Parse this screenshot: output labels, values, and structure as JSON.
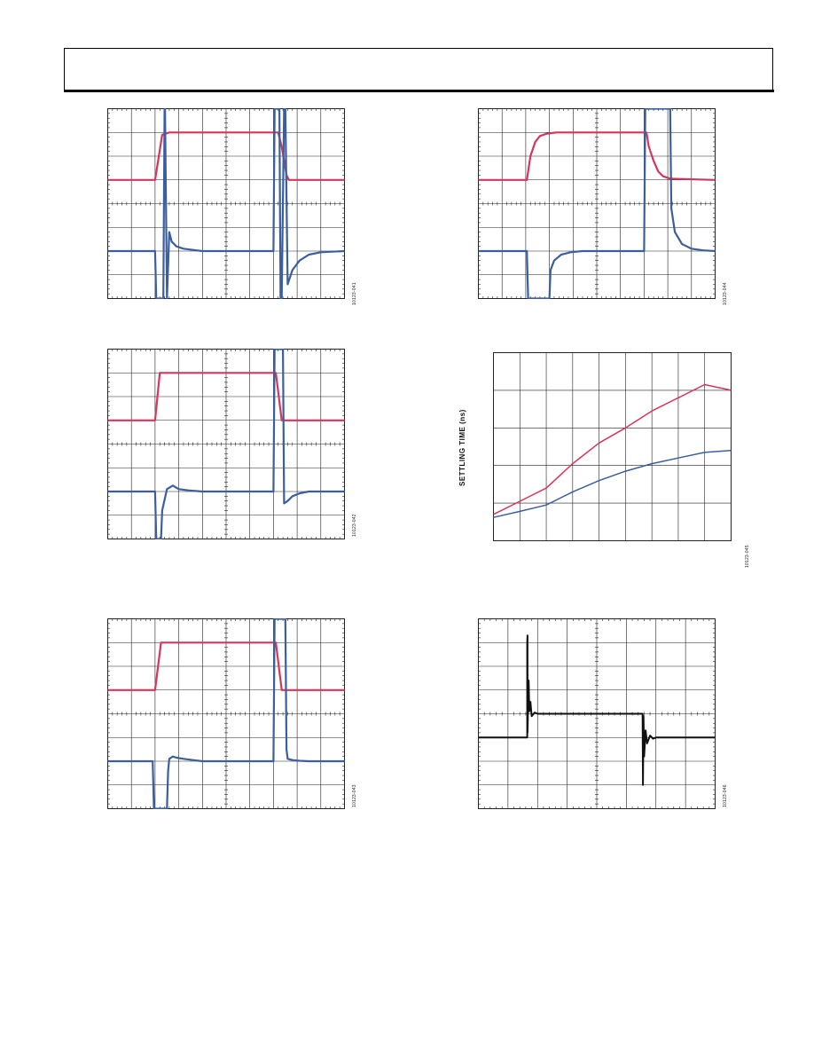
{
  "colors": {
    "red_trace": "#d6365a",
    "blue_trace": "#3b5f9e",
    "black_trace": "#111111",
    "grid": "#222222"
  },
  "figure_ids": [
    "10123-041",
    "10123-042",
    "10123-043",
    "10123-044",
    "10123-045",
    "10123-046"
  ],
  "settling_chart_ylabel": "SETTLING TIME (ns)",
  "chart_data": [
    {
      "type": "line",
      "id": "scope-top-left",
      "grid": true,
      "divisions": {
        "x": 10,
        "y": 8
      },
      "xlim": [
        0,
        10
      ],
      "ylim": [
        0,
        8
      ],
      "series": [
        {
          "color": "#d6365a",
          "x": [
            0,
            2.0,
            2.3,
            2.6,
            7.2,
            7.35,
            7.55,
            7.65,
            10
          ],
          "y": [
            5,
            5,
            6.9,
            7,
            7,
            6.4,
            5.2,
            5,
            5
          ]
        },
        {
          "color": "#3b5f9e",
          "x": [
            0,
            2.0,
            2.05,
            2.1,
            2.35,
            2.4,
            2.42,
            2.5,
            2.6,
            2.7,
            2.9,
            3.2,
            3.6,
            4,
            7.0,
            7.05,
            7.1,
            7.25,
            7.3,
            7.35,
            7.45,
            7.5,
            7.6,
            7.8,
            8.1,
            8.5,
            9,
            10
          ],
          "y": [
            2,
            2,
            0,
            0,
            0,
            8,
            8,
            0,
            2.8,
            2.4,
            2.2,
            2.1,
            2.05,
            2,
            2,
            8,
            8,
            8,
            0,
            0,
            8,
            8,
            0.6,
            1.2,
            1.6,
            1.85,
            1.95,
            2
          ]
        }
      ]
    },
    {
      "type": "line",
      "id": "scope-top-right",
      "grid": true,
      "divisions": {
        "x": 10,
        "y": 8
      },
      "xlim": [
        0,
        10
      ],
      "ylim": [
        0,
        8
      ],
      "series": [
        {
          "color": "#d6365a",
          "x": [
            0,
            2.05,
            2.2,
            2.4,
            2.6,
            2.9,
            3.3,
            7.1,
            7.2,
            7.4,
            7.6,
            7.8,
            8.1,
            10
          ],
          "y": [
            5,
            5,
            6,
            6.6,
            6.85,
            6.95,
            7,
            7,
            6.4,
            5.8,
            5.35,
            5.15,
            5.05,
            5
          ]
        },
        {
          "color": "#3b5f9e",
          "x": [
            0,
            2.05,
            2.1,
            3.0,
            3.05,
            3.2,
            3.5,
            3.9,
            4.4,
            5,
            7.0,
            7.05,
            7.1,
            8.1,
            8.15,
            8.3,
            8.6,
            9,
            9.5,
            10
          ],
          "y": [
            2,
            2,
            0,
            0,
            1.2,
            1.6,
            1.85,
            1.95,
            2,
            2,
            2,
            8,
            8,
            8,
            3.8,
            2.8,
            2.3,
            2.1,
            2.03,
            2
          ]
        }
      ]
    },
    {
      "type": "line",
      "id": "scope-mid-left",
      "grid": true,
      "divisions": {
        "x": 10,
        "y": 8
      },
      "xlim": [
        0,
        10
      ],
      "ylim": [
        0,
        8
      ],
      "series": [
        {
          "color": "#d6365a",
          "x": [
            0,
            2.0,
            2.2,
            7.1,
            7.35,
            10
          ],
          "y": [
            5,
            5,
            7,
            7,
            5,
            5
          ]
        },
        {
          "color": "#3b5f9e",
          "x": [
            0,
            2.0,
            2.05,
            2.25,
            2.3,
            2.5,
            2.75,
            3.0,
            3.4,
            4,
            7.0,
            7.05,
            7.1,
            7.35,
            7.4,
            7.45,
            7.6,
            7.8,
            8.1,
            8.5,
            10
          ],
          "y": [
            2,
            2,
            0,
            0,
            1.2,
            2.1,
            2.25,
            2.1,
            2.05,
            2,
            2,
            8,
            8,
            8,
            8,
            1.5,
            1.6,
            1.8,
            1.92,
            2,
            2
          ]
        }
      ]
    },
    {
      "type": "line",
      "id": "settling-time-chart",
      "grid": true,
      "ylabel": "SETTLING TIME (ns)",
      "xlim": [
        0,
        9
      ],
      "ylim": [
        0,
        5
      ],
      "series": [
        {
          "color": "#d6365a",
          "x": [
            0,
            1,
            2,
            3,
            4,
            5,
            6,
            7,
            8,
            9
          ],
          "y": [
            0.7,
            1.05,
            1.4,
            2.05,
            2.6,
            3.0,
            3.45,
            3.8,
            4.15,
            4.0
          ]
        },
        {
          "color": "#3b5f9e",
          "x": [
            0,
            1,
            2,
            3,
            4,
            5,
            6,
            7,
            8,
            9
          ],
          "y": [
            0.62,
            0.78,
            0.95,
            1.3,
            1.6,
            1.85,
            2.05,
            2.2,
            2.35,
            2.4
          ]
        }
      ]
    },
    {
      "type": "line",
      "id": "scope-bottom-left",
      "grid": true,
      "divisions": {
        "x": 10,
        "y": 8
      },
      "xlim": [
        0,
        10
      ],
      "ylim": [
        0,
        8
      ],
      "series": [
        {
          "color": "#d6365a",
          "x": [
            0,
            2.0,
            2.25,
            7.1,
            7.35,
            10
          ],
          "y": [
            5,
            5,
            7,
            7,
            5,
            5
          ]
        },
        {
          "color": "#3b5f9e",
          "x": [
            0,
            1.9,
            1.95,
            2.0,
            2.05,
            2.5,
            2.55,
            2.6,
            2.75,
            2.9,
            3.2,
            3.6,
            4,
            7.0,
            7.05,
            7.1,
            7.5,
            7.55,
            7.6,
            7.8,
            8.1,
            8.5,
            10
          ],
          "y": [
            2,
            2,
            0,
            0,
            0,
            0,
            1.6,
            2.1,
            2.2,
            2.15,
            2.1,
            2.05,
            2,
            2,
            8,
            8,
            8,
            2.5,
            2.1,
            2.05,
            2.02,
            2,
            2
          ]
        }
      ]
    },
    {
      "type": "line",
      "id": "scope-bottom-right",
      "grid": true,
      "divisions": {
        "x": 8,
        "y": 8
      },
      "xlim": [
        0,
        8
      ],
      "ylim": [
        0,
        8
      ],
      "series": [
        {
          "color": "#111111",
          "x": [
            0,
            1.65,
            1.65,
            1.66,
            1.66,
            1.7,
            1.72,
            1.76,
            1.8,
            1.9,
            2.0,
            5.55,
            5.56,
            5.58,
            5.6,
            5.65,
            5.7,
            5.8,
            5.9,
            6.0,
            8
          ],
          "y": [
            3,
            3,
            7,
            7.3,
            3.2,
            5.4,
            4.1,
            4.5,
            3.9,
            4.05,
            4,
            4,
            1.0,
            3.9,
            2.2,
            3.3,
            2.75,
            3.08,
            2.95,
            3,
            3
          ]
        }
      ]
    }
  ]
}
